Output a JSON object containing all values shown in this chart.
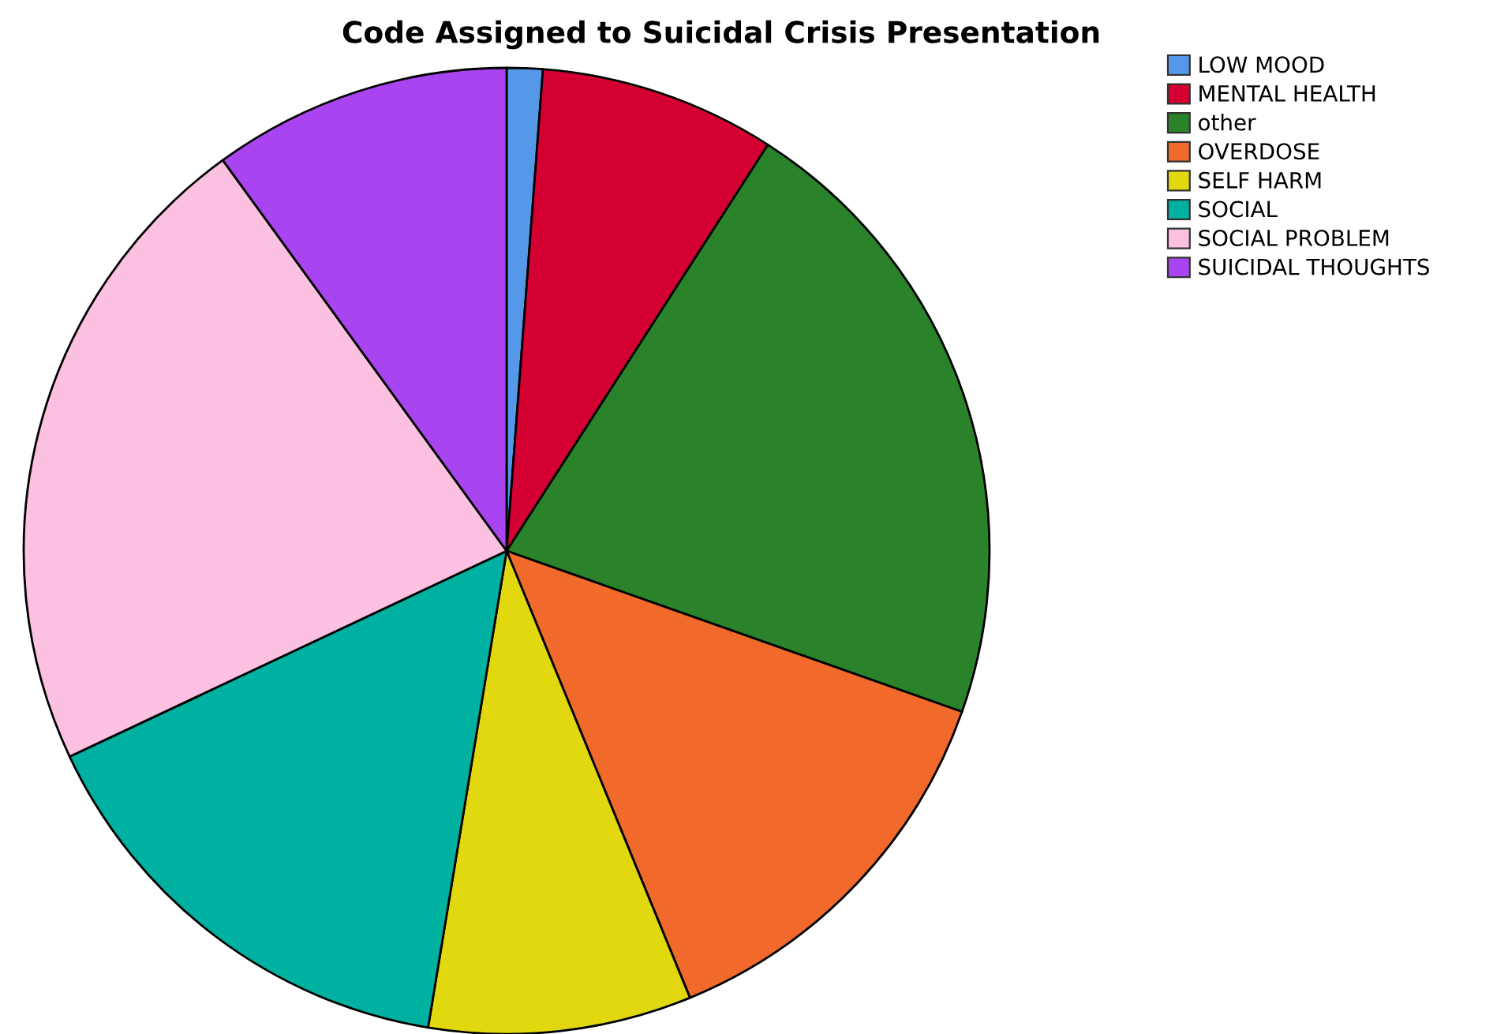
{
  "chart_data": {
    "type": "pie",
    "title": "Code Assigned to Suicidal Crisis Presentation",
    "categories": [
      "LOW MOOD",
      "MENTAL HEALTH",
      "other",
      "OVERDOSE",
      "SELF HARM",
      "SOCIAL",
      "SOCIAL PROBLEM",
      "SUICIDAL THOUGHTS"
    ],
    "values": [
      1.2,
      7.9,
      21.3,
      13.4,
      8.8,
      15.4,
      22.0,
      10.0
    ],
    "colors": [
      "#5598e8",
      "#d50032",
      "#2a832a",
      "#f2692c",
      "#e2d810",
      "#00b0a0",
      "#fcc0e0",
      "#a845f0"
    ],
    "legend": "top right"
  }
}
